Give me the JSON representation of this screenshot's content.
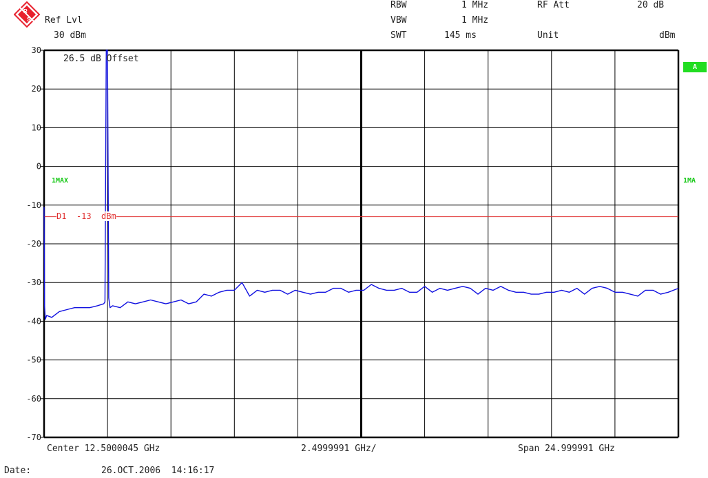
{
  "header": {
    "ref_lvl_label": "Ref Lvl",
    "ref_lvl_value": "30 dBm",
    "rbw_label": "RBW",
    "rbw_value": "1 MHz",
    "vbw_label": "VBW",
    "vbw_value": "1 MHz",
    "swt_label": "SWT",
    "swt_value": "145 ms",
    "rf_att_label": "RF Att",
    "rf_att_value": "20 dB",
    "unit_label": "Unit",
    "unit_value": "dBm"
  },
  "logo": {
    "icon": "rohde-schwarz-logo-icon",
    "text": "RS",
    "color": "#e8212e"
  },
  "plot": {
    "offset_text": "26.5 dB Offset",
    "trace_label_left": "1MAX",
    "trace_label_right": "1MA",
    "side_tag": "A",
    "display_line_label": "D1  -13  dBm"
  },
  "footer": {
    "center": "Center 12.5000045 GHz",
    "per_div": "2.4999991 GHz/",
    "span": "Span 24.999991 GHz",
    "date_label": "Date:",
    "date_value": "26.OCT.2006  14:16:17"
  },
  "colors": {
    "trace": "#1010e0",
    "display_line": "#e03030",
    "grid": "#000000",
    "marker_text": "#18c818"
  },
  "chart_data": {
    "type": "line",
    "x_unit": "GHz",
    "y_unit": "dBm",
    "xlim": [
      0,
      24.999991
    ],
    "ylim": [
      -70,
      30
    ],
    "yticks": [
      30,
      20,
      10,
      0,
      -10,
      -20,
      -30,
      -40,
      -50,
      -60,
      -70
    ],
    "ytick_labels": [
      "30",
      "20",
      "10",
      "0",
      "-10",
      "-20",
      "-30",
      "-40",
      "-50",
      "-60",
      "-70"
    ],
    "grid": true,
    "display_line": {
      "name": "D1",
      "value": -13
    },
    "series": [
      {
        "x": [
          0.0,
          0.02,
          0.05,
          0.1,
          0.3,
          0.6,
          0.9,
          1.2,
          1.5,
          1.8,
          2.1,
          2.35,
          2.4,
          2.45,
          2.5,
          2.55,
          2.6,
          2.7,
          3.0,
          3.3,
          3.6,
          3.9,
          4.2,
          4.5,
          4.8,
          5.1,
          5.4,
          5.7,
          6.0,
          6.3,
          6.6,
          6.9,
          7.2,
          7.5,
          7.8,
          8.1,
          8.4,
          8.7,
          9.0,
          9.3,
          9.6,
          9.9,
          10.2,
          10.5,
          10.8,
          11.1,
          11.4,
          11.7,
          12.0,
          12.3,
          12.6,
          12.9,
          13.2,
          13.5,
          13.8,
          14.1,
          14.4,
          14.7,
          15.0,
          15.3,
          15.6,
          15.9,
          16.2,
          16.5,
          16.8,
          17.1,
          17.4,
          17.7,
          18.0,
          18.3,
          18.6,
          18.9,
          19.2,
          19.5,
          19.8,
          20.1,
          20.4,
          20.7,
          21.0,
          21.3,
          21.6,
          21.9,
          22.2,
          22.5,
          22.8,
          23.1,
          23.4,
          23.7,
          24.0,
          24.3,
          24.6,
          24.999991
        ],
        "y": [
          -10.5,
          -36,
          -39.5,
          -38.5,
          -39,
          -37.5,
          -37,
          -36.5,
          -36.5,
          -36.5,
          -36,
          -35.5,
          -35,
          35,
          35,
          -34,
          -36.5,
          -36,
          -36.5,
          -35,
          -35.5,
          -35,
          -34.5,
          -35,
          -35.5,
          -35,
          -34.5,
          -35.5,
          -35,
          -33,
          -33.5,
          -32.5,
          -32,
          -32,
          -30,
          -33.5,
          -32,
          -32.5,
          -32,
          -32,
          -33,
          -32,
          -32.5,
          -33,
          -32.5,
          -32.5,
          -31.5,
          -31.5,
          -32.5,
          -32,
          -32,
          -30.5,
          -31.5,
          -32,
          -32,
          -31.5,
          -32.5,
          -32.5,
          -31,
          -32.5,
          -31.5,
          -32,
          -31.5,
          -31,
          -31.5,
          -33,
          -31.5,
          -32,
          -31,
          -32,
          -32.5,
          -32.5,
          -33,
          -33,
          -32.5,
          -32.5,
          -32,
          -32.5,
          -31.5,
          -33,
          -31.5,
          -31,
          -31.5,
          -32.5,
          -32.5,
          -33,
          -33.5,
          -32,
          -32,
          -33,
          -32.5,
          -31.5
        ]
      }
    ]
  }
}
